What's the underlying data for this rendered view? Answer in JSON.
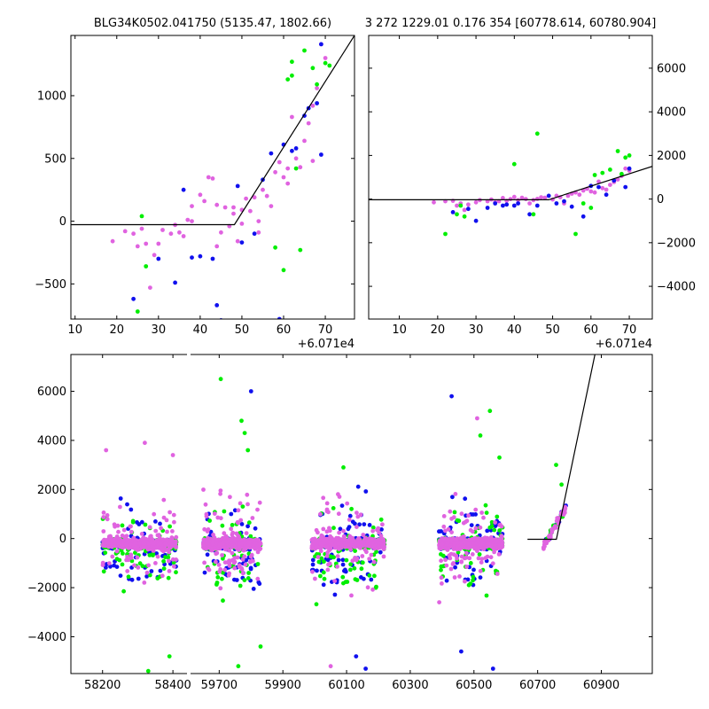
{
  "chart_data": [
    {
      "type": "scatter",
      "title": "BLG34K0502.041750 (5135.47, 1802.66)",
      "xlim": [
        9,
        77
      ],
      "ylim": [
        -780,
        1480
      ],
      "x_offset_label": "+6.071e4",
      "xticks": [
        10,
        20,
        30,
        40,
        50,
        60,
        70
      ],
      "yticks": [
        -500,
        0,
        500,
        1000
      ],
      "ytick_labels": [
        "−500",
        "0",
        "500",
        "1000"
      ],
      "yaxis_side": "left",
      "model_line": [
        [
          9,
          -28
        ],
        [
          48.2,
          -28
        ],
        [
          77,
          1480
        ]
      ],
      "series": [
        {
          "color": "#e063e0",
          "points": [
            [
              19,
              -160
            ],
            [
              22,
              -80
            ],
            [
              24,
              -100
            ],
            [
              25,
              -200
            ],
            [
              26,
              -60
            ],
            [
              27,
              -180
            ],
            [
              28,
              -530
            ],
            [
              29,
              -270
            ],
            [
              30,
              -180
            ],
            [
              31,
              -70
            ],
            [
              33,
              -100
            ],
            [
              34,
              -30
            ],
            [
              35,
              -90
            ],
            [
              36,
              -120
            ],
            [
              37,
              10
            ],
            [
              38,
              0
            ],
            [
              38,
              120
            ],
            [
              40,
              210
            ],
            [
              41,
              160
            ],
            [
              42,
              350
            ],
            [
              43,
              340
            ],
            [
              44,
              130
            ],
            [
              44,
              -200
            ],
            [
              45,
              -90
            ],
            [
              46,
              110
            ],
            [
              47,
              -40
            ],
            [
              48,
              60
            ],
            [
              48,
              110
            ],
            [
              49,
              -160
            ],
            [
              50,
              -20
            ],
            [
              50,
              90
            ],
            [
              51,
              180
            ],
            [
              52,
              80
            ],
            [
              53,
              190
            ],
            [
              54,
              -90
            ],
            [
              54,
              0
            ],
            [
              55,
              250
            ],
            [
              56,
              200
            ],
            [
              57,
              120
            ],
            [
              58,
              390
            ],
            [
              59,
              470
            ],
            [
              60,
              350
            ],
            [
              61,
              300
            ],
            [
              61,
              420
            ],
            [
              62,
              830
            ],
            [
              63,
              500
            ],
            [
              64,
              430
            ],
            [
              65,
              640
            ],
            [
              66,
              780
            ],
            [
              67,
              920
            ],
            [
              67,
              480
            ],
            [
              68,
              1060
            ],
            [
              69,
              1410
            ],
            [
              70,
              1300
            ]
          ]
        },
        {
          "color": "#1010ee",
          "points": [
            [
              24,
              -620
            ],
            [
              30,
              -300
            ],
            [
              34,
              -490
            ],
            [
              36,
              250
            ],
            [
              38,
              -290
            ],
            [
              40,
              -280
            ],
            [
              43,
              -300
            ],
            [
              44,
              -670
            ],
            [
              45,
              -790
            ],
            [
              49,
              280
            ],
            [
              50,
              -170
            ],
            [
              53,
              -100
            ],
            [
              55,
              330
            ],
            [
              57,
              540
            ],
            [
              59,
              -780
            ],
            [
              60,
              610
            ],
            [
              62,
              560
            ],
            [
              63,
              580
            ],
            [
              65,
              840
            ],
            [
              66,
              900
            ],
            [
              68,
              940
            ],
            [
              69,
              530
            ],
            [
              69,
              1410
            ]
          ]
        },
        {
          "color": "#00ee00",
          "points": [
            [
              25,
              -720
            ],
            [
              26,
              40
            ],
            [
              27,
              -360
            ],
            [
              58,
              -210
            ],
            [
              60,
              -390
            ],
            [
              61,
              1130
            ],
            [
              62,
              1160
            ],
            [
              62,
              1270
            ],
            [
              63,
              420
            ],
            [
              64,
              -230
            ],
            [
              65,
              1360
            ],
            [
              67,
              1220
            ],
            [
              68,
              1090
            ],
            [
              70,
              1260
            ],
            [
              71,
              1240
            ]
          ]
        }
      ]
    },
    {
      "type": "scatter",
      "title": "3 272 1229.01 0.176 354 [60778.614, 60780.904]",
      "xlim": [
        2,
        76
      ],
      "ylim": [
        -5500,
        7500
      ],
      "x_offset_label": "+6.071e4",
      "xticks": [
        10,
        20,
        30,
        40,
        50,
        60,
        70
      ],
      "yticks": [
        -4000,
        -2000,
        0,
        2000,
        4000,
        6000
      ],
      "ytick_labels": [
        "−4000",
        "−2000",
        "0",
        "2000",
        "4000",
        "6000"
      ],
      "yaxis_side": "right",
      "model_line": [
        [
          2,
          -30
        ],
        [
          49,
          -30
        ],
        [
          76,
          1500
        ]
      ],
      "series": [
        {
          "color": "#e063e0",
          "points": [
            [
              19,
              -150
            ],
            [
              22,
              -100
            ],
            [
              24,
              -80
            ],
            [
              25,
              -300
            ],
            [
              26,
              -200
            ],
            [
              27,
              -500
            ],
            [
              28,
              -250
            ],
            [
              30,
              -150
            ],
            [
              31,
              -50
            ],
            [
              33,
              -100
            ],
            [
              34,
              -20
            ],
            [
              35,
              -150
            ],
            [
              36,
              -100
            ],
            [
              37,
              50
            ],
            [
              38,
              -80
            ],
            [
              39,
              0
            ],
            [
              40,
              100
            ],
            [
              41,
              -50
            ],
            [
              42,
              60
            ],
            [
              43,
              0
            ],
            [
              44,
              -200
            ],
            [
              45,
              -50
            ],
            [
              46,
              10
            ],
            [
              47,
              80
            ],
            [
              48,
              60
            ],
            [
              50,
              -20
            ],
            [
              51,
              150
            ],
            [
              52,
              80
            ],
            [
              53,
              -200
            ],
            [
              54,
              150
            ],
            [
              55,
              250
            ],
            [
              56,
              300
            ],
            [
              57,
              200
            ],
            [
              58,
              390
            ],
            [
              59,
              470
            ],
            [
              60,
              350
            ],
            [
              61,
              300
            ],
            [
              62,
              800
            ],
            [
              63,
              500
            ],
            [
              64,
              430
            ],
            [
              65,
              650
            ],
            [
              66,
              780
            ],
            [
              67,
              900
            ],
            [
              68,
              1060
            ],
            [
              69,
              1400
            ],
            [
              70,
              1300
            ]
          ]
        },
        {
          "color": "#1010ee",
          "points": [
            [
              24,
              -600
            ],
            [
              28,
              -450
            ],
            [
              30,
              -1000
            ],
            [
              33,
              -400
            ],
            [
              35,
              -200
            ],
            [
              37,
              -300
            ],
            [
              38,
              -250
            ],
            [
              40,
              -300
            ],
            [
              41,
              -200
            ],
            [
              44,
              -700
            ],
            [
              46,
              -300
            ],
            [
              49,
              150
            ],
            [
              51,
              -200
            ],
            [
              53,
              -100
            ],
            [
              55,
              -350
            ],
            [
              58,
              -800
            ],
            [
              60,
              600
            ],
            [
              62,
              550
            ],
            [
              64,
              200
            ],
            [
              66,
              850
            ],
            [
              69,
              550
            ],
            [
              70,
              1400
            ]
          ]
        },
        {
          "color": "#00ee00",
          "points": [
            [
              22,
              -1600
            ],
            [
              25,
              -700
            ],
            [
              26,
              -300
            ],
            [
              27,
              -800
            ],
            [
              40,
              1600
            ],
            [
              45,
              -700
            ],
            [
              46,
              3000
            ],
            [
              56,
              -1600
            ],
            [
              58,
              -200
            ],
            [
              60,
              -400
            ],
            [
              61,
              1100
            ],
            [
              63,
              1200
            ],
            [
              65,
              1350
            ],
            [
              67,
              2200
            ],
            [
              68,
              1150
            ],
            [
              69,
              1900
            ],
            [
              70,
              2000
            ]
          ]
        }
      ]
    },
    {
      "type": "scatter",
      "title": "",
      "segments": [
        {
          "xlim": [
            58110,
            58440
          ],
          "xticks": [
            58200,
            58400
          ]
        },
        {
          "xlim": [
            59610,
            61060
          ],
          "xticks": [
            59700,
            59900,
            60100,
            60300,
            60500,
            60700,
            60900
          ]
        }
      ],
      "ylim": [
        -5500,
        7500
      ],
      "yticks": [
        -4000,
        -2000,
        0,
        2000,
        4000,
        6000
      ],
      "ytick_labels": [
        "−4000",
        "−2000",
        "0",
        "2000",
        "4000",
        "6000"
      ],
      "model_line": [
        [
          60668,
          -30
        ],
        [
          60759,
          -30
        ],
        [
          60880,
          7500
        ]
      ],
      "clusters": [
        {
          "x": [
            58200,
            58410
          ],
          "spread": 320,
          "tail": 1800
        },
        {
          "x": [
            59650,
            59830
          ],
          "spread": 330,
          "tail": 2100
        },
        {
          "x": [
            59990,
            60220
          ],
          "spread": 330,
          "tail": 2100
        },
        {
          "x": [
            60390,
            60590
          ],
          "spread": 340,
          "tail": 2100
        },
        {
          "x": [
            60718,
            60790
          ],
          "spread": 300,
          "tail": 900,
          "rise": true
        }
      ],
      "outliers": [
        {
          "x": 58210,
          "y": 3600,
          "c": "#e063e0"
        },
        {
          "x": 58320,
          "y": 3900,
          "c": "#e063e0"
        },
        {
          "x": 58400,
          "y": 3400,
          "c": "#e063e0"
        },
        {
          "x": 58330,
          "y": -5400,
          "c": "#00ee00"
        },
        {
          "x": 58390,
          "y": -4800,
          "c": "#00ee00"
        },
        {
          "x": 59705,
          "y": 6500,
          "c": "#00ee00"
        },
        {
          "x": 59800,
          "y": 6000,
          "c": "#1010ee"
        },
        {
          "x": 59770,
          "y": 4800,
          "c": "#00ee00"
        },
        {
          "x": 59780,
          "y": 4300,
          "c": "#00ee00"
        },
        {
          "x": 59790,
          "y": 3600,
          "c": "#00ee00"
        },
        {
          "x": 59760,
          "y": -5200,
          "c": "#00ee00"
        },
        {
          "x": 59830,
          "y": -4400,
          "c": "#00ee00"
        },
        {
          "x": 60090,
          "y": 2900,
          "c": "#00ee00"
        },
        {
          "x": 60130,
          "y": -4800,
          "c": "#1010ee"
        },
        {
          "x": 60160,
          "y": -5300,
          "c": "#1010ee"
        },
        {
          "x": 60050,
          "y": -5200,
          "c": "#e063e0"
        },
        {
          "x": 60430,
          "y": 5800,
          "c": "#1010ee"
        },
        {
          "x": 60510,
          "y": 4900,
          "c": "#e063e0"
        },
        {
          "x": 60520,
          "y": 4200,
          "c": "#00ee00"
        },
        {
          "x": 60550,
          "y": 5200,
          "c": "#00ee00"
        },
        {
          "x": 60580,
          "y": 3300,
          "c": "#00ee00"
        },
        {
          "x": 60560,
          "y": -5300,
          "c": "#1010ee"
        },
        {
          "x": 60460,
          "y": -4600,
          "c": "#1010ee"
        },
        {
          "x": 60758,
          "y": 3000,
          "c": "#00ee00"
        },
        {
          "x": 60775,
          "y": 2200,
          "c": "#00ee00"
        }
      ]
    }
  ]
}
